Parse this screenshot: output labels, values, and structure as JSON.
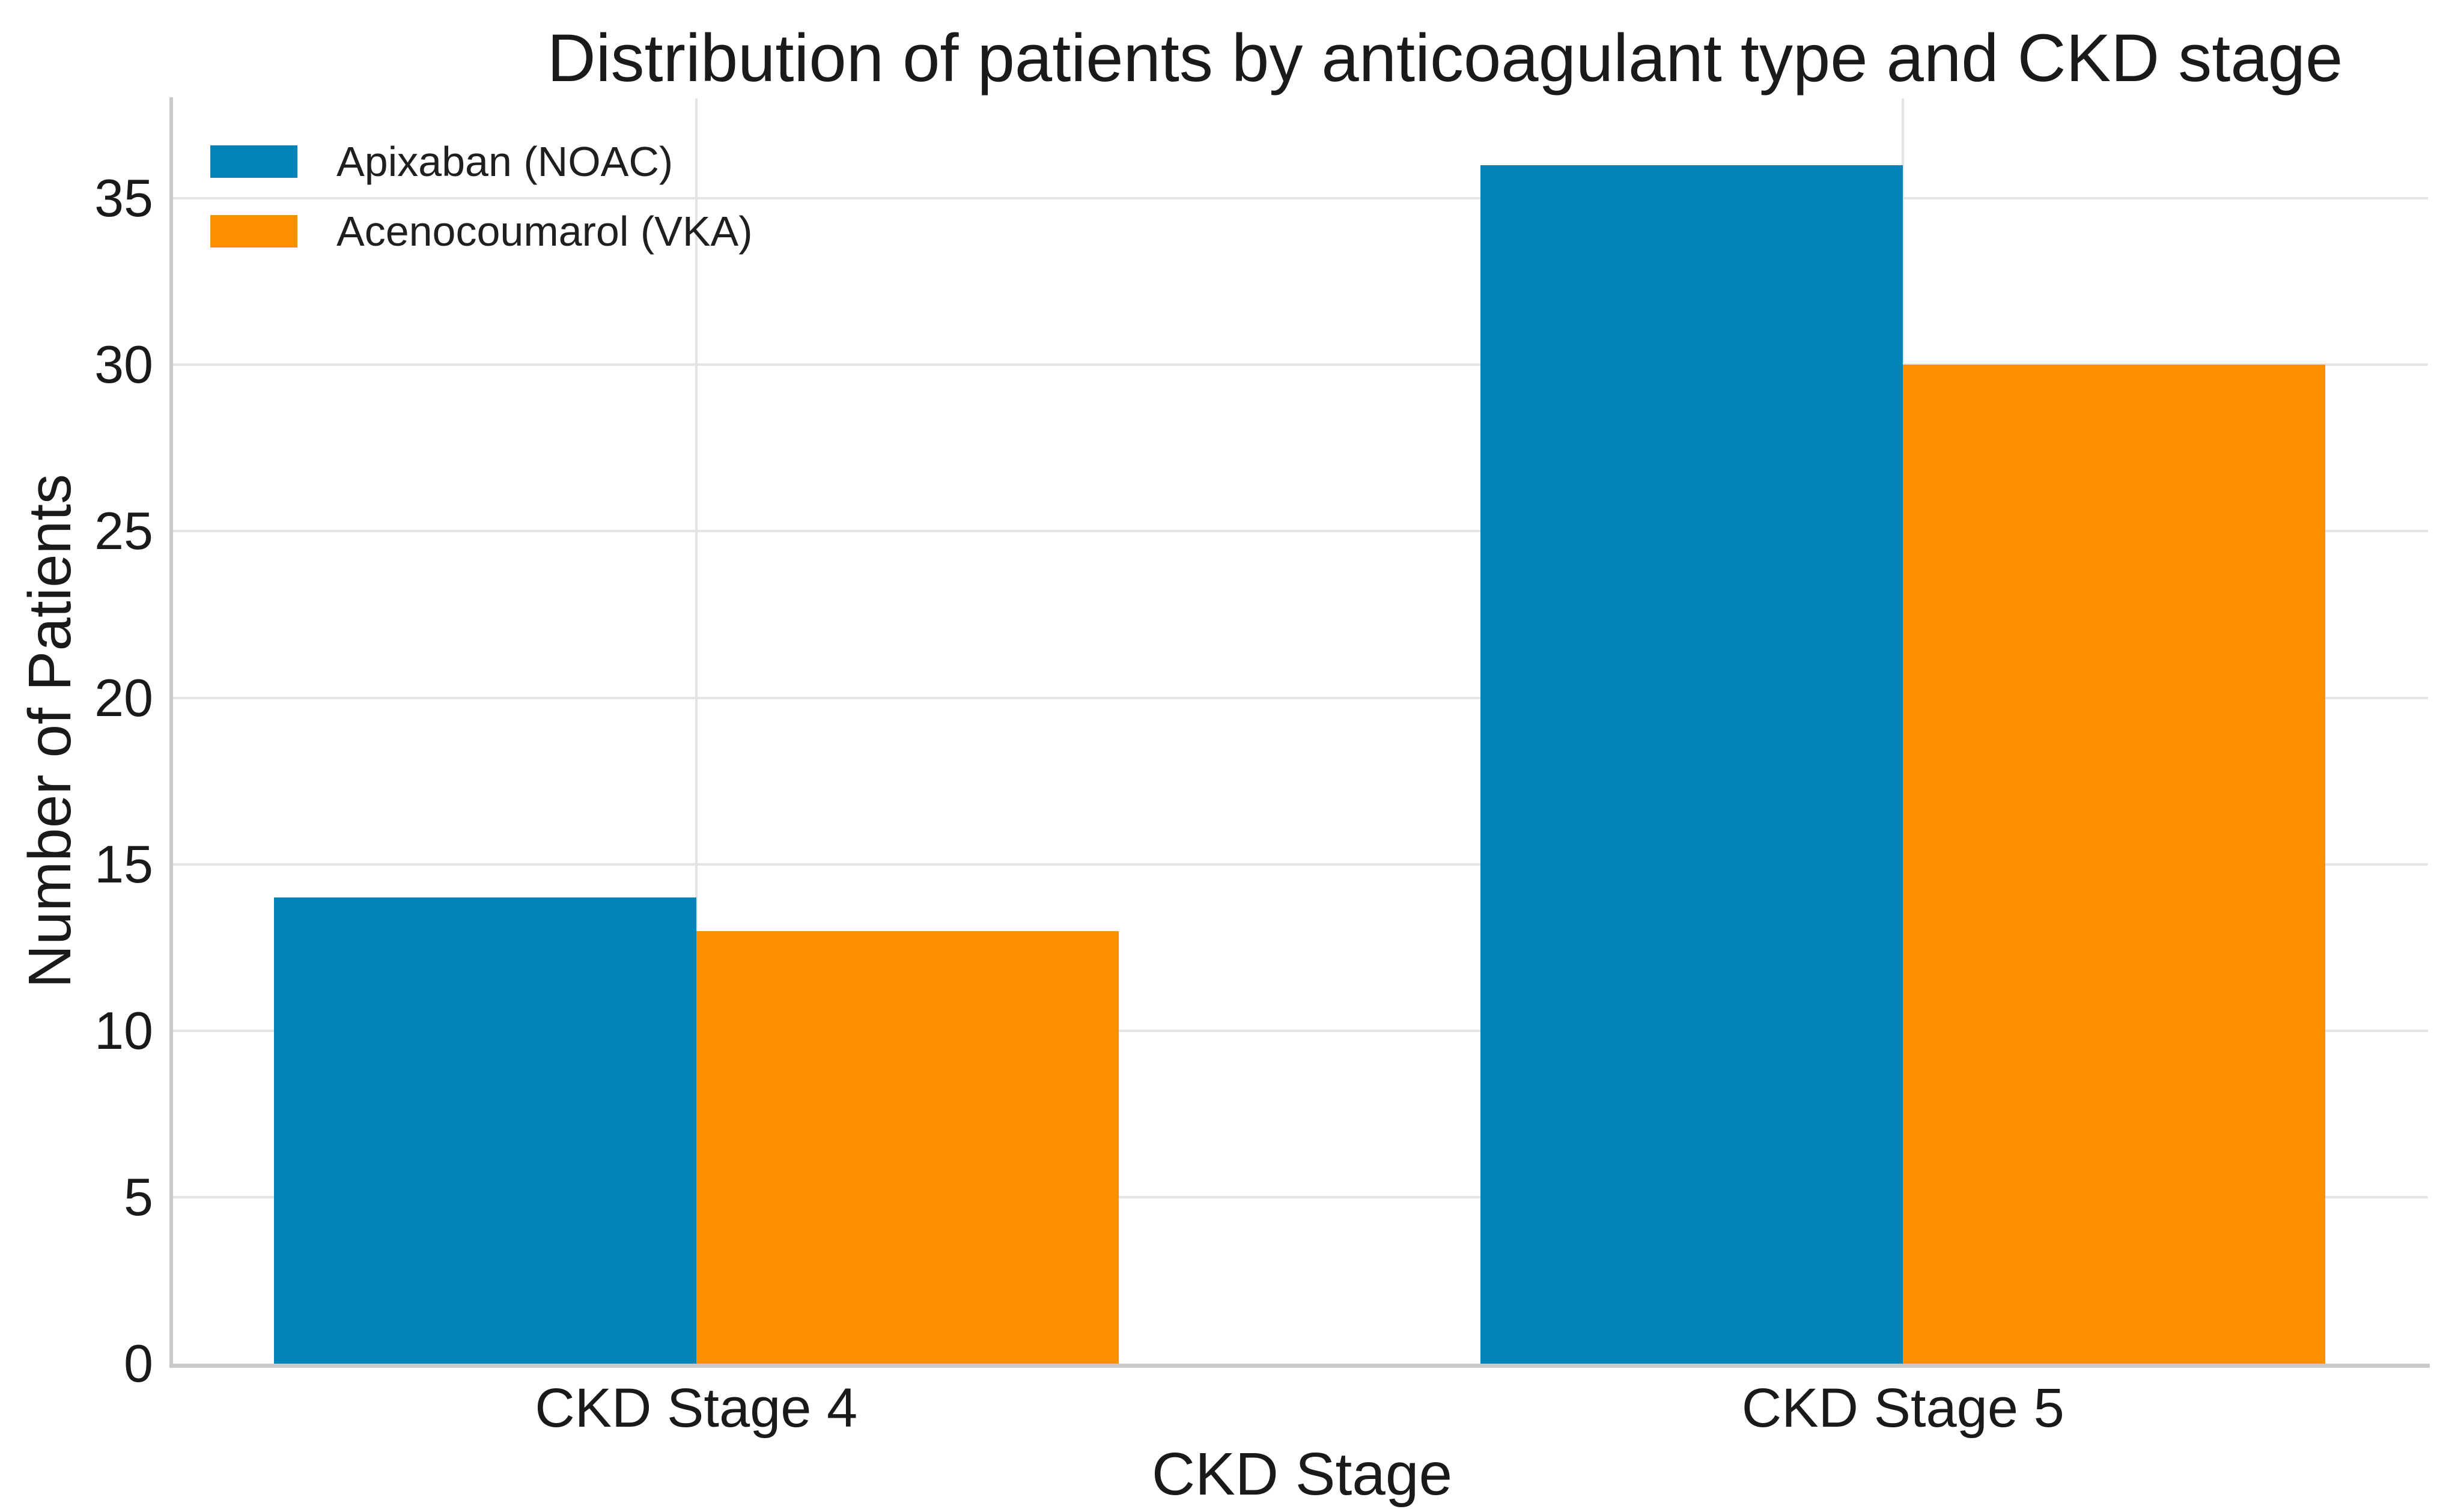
{
  "chart_data": {
    "type": "bar",
    "title": "Distribution of patients by anticoagulant type and CKD stage",
    "xlabel": "CKD Stage",
    "ylabel": "Number of Patients",
    "categories": [
      "CKD Stage 4",
      "CKD Stage 5"
    ],
    "series": [
      {
        "name": "Apixaban (NOAC)",
        "color": "#0284b8",
        "values": [
          14,
          36
        ]
      },
      {
        "name": "Acenocoumarol (VKA)",
        "color": "#fc8e02",
        "values": [
          13,
          30
        ]
      }
    ],
    "yticks": [
      0,
      5,
      10,
      15,
      20,
      25,
      30,
      35
    ],
    "ytick_labels": [
      "0",
      "5",
      "10",
      "15",
      "20",
      "25",
      "30",
      "35"
    ],
    "ylim": [
      0,
      38
    ],
    "grid": true,
    "legend_position": "upper-left",
    "colors": {
      "background": "#ffffff",
      "gridline": "#e4e4e4",
      "spine": "#c9c9c9",
      "text": "#1a1a1a"
    }
  }
}
